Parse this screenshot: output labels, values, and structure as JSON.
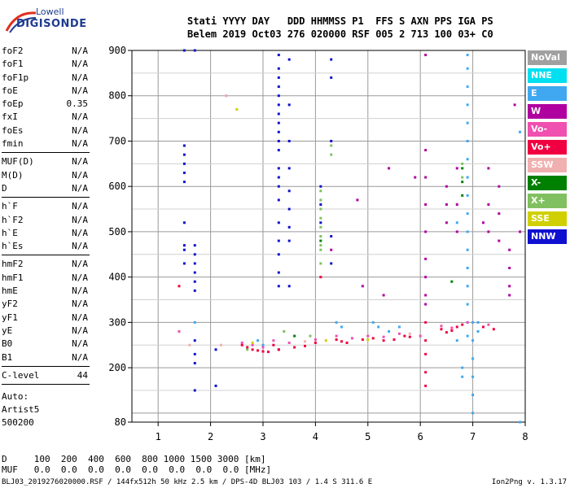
{
  "logo": {
    "brand": "Lowell",
    "product": "DIGISONDE"
  },
  "header": {
    "line1": "Stati YYYY DAY   DDD HHMMSS P1  FFS S AXN PPS IGA PS",
    "line2": "Belem 2019 Oct03 276 020000 RSF 005 2 713 100 03+ C0"
  },
  "params_group1": [
    {
      "name": "foF2",
      "value": "N/A"
    },
    {
      "name": "foF1",
      "value": "N/A"
    },
    {
      "name": "foF1p",
      "value": "N/A"
    },
    {
      "name": "foE",
      "value": "N/A"
    },
    {
      "name": "foEp",
      "value": "0.35"
    },
    {
      "name": "fxI",
      "value": "N/A"
    },
    {
      "name": "foEs",
      "value": "N/A"
    },
    {
      "name": "fmin",
      "value": "N/A"
    }
  ],
  "params_group2": [
    {
      "name": "MUF(D)",
      "value": "N/A"
    },
    {
      "name": "M(D)",
      "value": "N/A"
    },
    {
      "name": "D",
      "value": "N/A"
    }
  ],
  "params_group3": [
    {
      "name": "h`F",
      "value": "N/A"
    },
    {
      "name": "h`F2",
      "value": "N/A"
    },
    {
      "name": "h`E",
      "value": "N/A"
    },
    {
      "name": "h`Es",
      "value": "N/A"
    }
  ],
  "params_group4": [
    {
      "name": "hmF2",
      "value": "N/A"
    },
    {
      "name": "hmF1",
      "value": "N/A"
    },
    {
      "name": "hmE",
      "value": "N/A"
    },
    {
      "name": "yF2",
      "value": "N/A"
    },
    {
      "name": "yF1",
      "value": "N/A"
    },
    {
      "name": "yE",
      "value": "N/A"
    },
    {
      "name": "B0",
      "value": "N/A"
    },
    {
      "name": "B1",
      "value": "N/A"
    }
  ],
  "c_level": {
    "name": "C-level",
    "value": "44"
  },
  "auto": {
    "label": "Auto:",
    "artist": "Artist5",
    "code": "500200"
  },
  "distance_row": "D     100  200  400  600  800 1000 1500 3000 [km]",
  "muf_row": "MUF   0.0  0.0  0.0  0.0  0.0  0.0  0.0  0.0 [MHz]",
  "footer": "BLJ03_2019276020000.RSF / 144fx512h 50 kHz 2.5 km / DPS-4D BLJ03 103 / 1.4 S 311.6 E",
  "version": "Ion2Png v. 1.3.17",
  "legend": [
    {
      "label": "NoVal",
      "color": "#a0a0a0"
    },
    {
      "label": "NNE",
      "color": "#00e0f0"
    },
    {
      "label": "E",
      "color": "#40a8f0"
    },
    {
      "label": "W",
      "color": "#b000a0"
    },
    {
      "label": "Vo-",
      "color": "#f050b0"
    },
    {
      "label": "Vo+",
      "color": "#f00040"
    },
    {
      "label": "SSW",
      "color": "#f0b0b0"
    },
    {
      "label": "X-",
      "color": "#008000"
    },
    {
      "label": "X+",
      "color": "#80c060"
    },
    {
      "label": "SSE",
      "color": "#d0d000"
    },
    {
      "label": "NNW",
      "color": "#1010d0"
    }
  ],
  "chart_data": {
    "type": "scatter",
    "xlabel": "",
    "ylabel": "",
    "xlim": [
      0.5,
      8
    ],
    "ylim": [
      80,
      900
    ],
    "x_ticks": [
      1,
      2,
      3,
      4,
      5,
      6,
      7,
      8
    ],
    "y_ticks": [
      200,
      300,
      400,
      500,
      600,
      700,
      800,
      900
    ],
    "y_tick_labels_extra": [
      80,
      900
    ],
    "grid": true,
    "series": [
      {
        "name": "NNW",
        "color": "#1010d0",
        "points": [
          [
            1.5,
            900
          ],
          [
            1.7,
            900
          ],
          [
            1.5,
            690
          ],
          [
            1.5,
            670
          ],
          [
            1.5,
            650
          ],
          [
            1.5,
            630
          ],
          [
            1.5,
            610
          ],
          [
            1.5,
            520
          ],
          [
            1.5,
            470
          ],
          [
            1.5,
            460
          ],
          [
            1.5,
            430
          ],
          [
            1.7,
            470
          ],
          [
            1.7,
            450
          ],
          [
            1.7,
            430
          ],
          [
            1.7,
            410
          ],
          [
            1.7,
            390
          ],
          [
            1.7,
            370
          ],
          [
            1.7,
            260
          ],
          [
            1.7,
            230
          ],
          [
            1.7,
            210
          ],
          [
            1.7,
            150
          ],
          [
            3.3,
            890
          ],
          [
            3.3,
            860
          ],
          [
            3.3,
            840
          ],
          [
            3.3,
            820
          ],
          [
            3.3,
            800
          ],
          [
            3.3,
            780
          ],
          [
            3.3,
            760
          ],
          [
            3.3,
            740
          ],
          [
            3.3,
            720
          ],
          [
            3.3,
            700
          ],
          [
            3.3,
            680
          ],
          [
            3.3,
            640
          ],
          [
            3.3,
            620
          ],
          [
            3.3,
            600
          ],
          [
            3.3,
            570
          ],
          [
            3.3,
            520
          ],
          [
            3.3,
            480
          ],
          [
            3.3,
            450
          ],
          [
            3.3,
            410
          ],
          [
            3.3,
            380
          ],
          [
            3.3,
            240
          ],
          [
            3.5,
            880
          ],
          [
            3.5,
            780
          ],
          [
            3.5,
            700
          ],
          [
            3.5,
            640
          ],
          [
            3.5,
            590
          ],
          [
            3.5,
            550
          ],
          [
            3.5,
            510
          ],
          [
            3.5,
            480
          ],
          [
            3.5,
            380
          ],
          [
            4.1,
            600
          ],
          [
            4.1,
            560
          ],
          [
            4.1,
            520
          ],
          [
            4.3,
            880
          ],
          [
            4.3,
            840
          ],
          [
            4.3,
            700
          ],
          [
            4.3,
            490
          ],
          [
            4.3,
            430
          ],
          [
            2.1,
            240
          ],
          [
            2.1,
            160
          ]
        ]
      },
      {
        "name": "Vo+",
        "color": "#f00040",
        "points": [
          [
            2.6,
            250
          ],
          [
            2.7,
            245
          ],
          [
            2.8,
            240
          ],
          [
            2.9,
            238
          ],
          [
            3.0,
            236
          ],
          [
            3.1,
            235
          ],
          [
            3.2,
            250
          ],
          [
            3.3,
            240
          ],
          [
            3.6,
            245
          ],
          [
            3.8,
            248
          ],
          [
            4.0,
            255
          ],
          [
            4.4,
            262
          ],
          [
            4.5,
            258
          ],
          [
            4.6,
            255
          ],
          [
            4.9,
            262
          ],
          [
            5.1,
            265
          ],
          [
            5.3,
            260
          ],
          [
            5.5,
            262
          ],
          [
            5.7,
            270
          ],
          [
            5.8,
            268
          ],
          [
            6.1,
            300
          ],
          [
            6.1,
            260
          ],
          [
            6.1,
            230
          ],
          [
            6.1,
            190
          ],
          [
            6.1,
            160
          ],
          [
            6.4,
            285
          ],
          [
            6.5,
            278
          ],
          [
            6.6,
            282
          ],
          [
            6.7,
            290
          ],
          [
            6.8,
            295
          ],
          [
            7.2,
            290
          ],
          [
            7.4,
            285
          ],
          [
            1.4,
            380
          ],
          [
            4.1,
            400
          ]
        ]
      },
      {
        "name": "E",
        "color": "#40a8f0",
        "points": [
          [
            6.9,
            890
          ],
          [
            6.9,
            860
          ],
          [
            6.9,
            820
          ],
          [
            6.9,
            780
          ],
          [
            6.9,
            740
          ],
          [
            6.9,
            700
          ],
          [
            6.9,
            660
          ],
          [
            6.9,
            620
          ],
          [
            6.9,
            580
          ],
          [
            6.9,
            540
          ],
          [
            6.9,
            500
          ],
          [
            6.9,
            460
          ],
          [
            6.9,
            420
          ],
          [
            6.9,
            380
          ],
          [
            6.9,
            340
          ],
          [
            6.9,
            300
          ],
          [
            6.9,
            270
          ],
          [
            7.0,
            300
          ],
          [
            7.0,
            260
          ],
          [
            7.0,
            220
          ],
          [
            7.0,
            180
          ],
          [
            7.0,
            140
          ],
          [
            7.0,
            100
          ],
          [
            6.7,
            520
          ],
          [
            6.7,
            260
          ],
          [
            6.8,
            200
          ],
          [
            6.8,
            180
          ],
          [
            7.1,
            300
          ],
          [
            7.1,
            280
          ],
          [
            4.4,
            300
          ],
          [
            4.5,
            290
          ],
          [
            5.1,
            300
          ],
          [
            5.2,
            290
          ],
          [
            5.4,
            280
          ],
          [
            5.6,
            290
          ],
          [
            2.9,
            260
          ],
          [
            3.0,
            250
          ],
          [
            1.7,
            300
          ],
          [
            7.9,
            720
          ],
          [
            7.9,
            80
          ]
        ]
      },
      {
        "name": "W",
        "color": "#b000a0",
        "points": [
          [
            6.1,
            890
          ],
          [
            6.1,
            680
          ],
          [
            6.1,
            620
          ],
          [
            6.1,
            560
          ],
          [
            6.1,
            500
          ],
          [
            6.1,
            440
          ],
          [
            6.1,
            400
          ],
          [
            6.1,
            360
          ],
          [
            6.1,
            340
          ],
          [
            6.5,
            600
          ],
          [
            6.5,
            560
          ],
          [
            6.5,
            520
          ],
          [
            6.7,
            640
          ],
          [
            6.7,
            560
          ],
          [
            6.7,
            500
          ],
          [
            7.2,
            520
          ],
          [
            7.3,
            640
          ],
          [
            7.3,
            560
          ],
          [
            7.3,
            500
          ],
          [
            7.5,
            600
          ],
          [
            7.5,
            540
          ],
          [
            7.5,
            480
          ],
          [
            7.7,
            460
          ],
          [
            7.7,
            420
          ],
          [
            7.7,
            380
          ],
          [
            7.7,
            360
          ],
          [
            7.8,
            780
          ],
          [
            7.9,
            500
          ],
          [
            5.4,
            640
          ],
          [
            5.9,
            620
          ],
          [
            4.8,
            570
          ],
          [
            4.3,
            460
          ],
          [
            4.9,
            380
          ],
          [
            5.3,
            360
          ]
        ]
      },
      {
        "name": "Vo-",
        "color": "#f050b0",
        "points": [
          [
            2.6,
            255
          ],
          [
            2.8,
            250
          ],
          [
            3.0,
            245
          ],
          [
            3.2,
            260
          ],
          [
            3.5,
            255
          ],
          [
            4.0,
            262
          ],
          [
            4.4,
            270
          ],
          [
            4.7,
            265
          ],
          [
            5.0,
            270
          ],
          [
            5.3,
            268
          ],
          [
            5.6,
            275
          ],
          [
            6.0,
            270
          ],
          [
            6.4,
            292
          ],
          [
            6.6,
            288
          ],
          [
            6.9,
            300
          ],
          [
            7.3,
            295
          ],
          [
            2.3,
            800
          ],
          [
            1.4,
            280
          ]
        ]
      },
      {
        "name": "X+",
        "color": "#80c060",
        "points": [
          [
            4.1,
            590
          ],
          [
            4.1,
            570
          ],
          [
            4.1,
            550
          ],
          [
            4.1,
            530
          ],
          [
            4.1,
            510
          ],
          [
            4.1,
            490
          ],
          [
            4.1,
            470
          ],
          [
            4.1,
            460
          ],
          [
            4.1,
            430
          ],
          [
            6.8,
            650
          ],
          [
            6.8,
            620
          ],
          [
            4.3,
            690
          ],
          [
            4.3,
            670
          ],
          [
            2.7,
            240
          ],
          [
            3.4,
            280
          ],
          [
            3.9,
            270
          ]
        ]
      },
      {
        "name": "X-",
        "color": "#008000",
        "points": [
          [
            6.8,
            640
          ],
          [
            6.8,
            610
          ],
          [
            6.8,
            580
          ],
          [
            4.1,
            480
          ],
          [
            6.6,
            390
          ],
          [
            3.6,
            270
          ]
        ]
      },
      {
        "name": "SSE",
        "color": "#d0d000",
        "points": [
          [
            2.5,
            770
          ],
          [
            2.8,
            255
          ],
          [
            4.2,
            260
          ],
          [
            5.0,
            262
          ]
        ]
      },
      {
        "name": "SSW",
        "color": "#f0b0b0",
        "points": [
          [
            2.3,
            800
          ],
          [
            1.6,
            250
          ],
          [
            2.2,
            250
          ],
          [
            3.8,
            258
          ],
          [
            5.8,
            275
          ]
        ]
      }
    ]
  }
}
